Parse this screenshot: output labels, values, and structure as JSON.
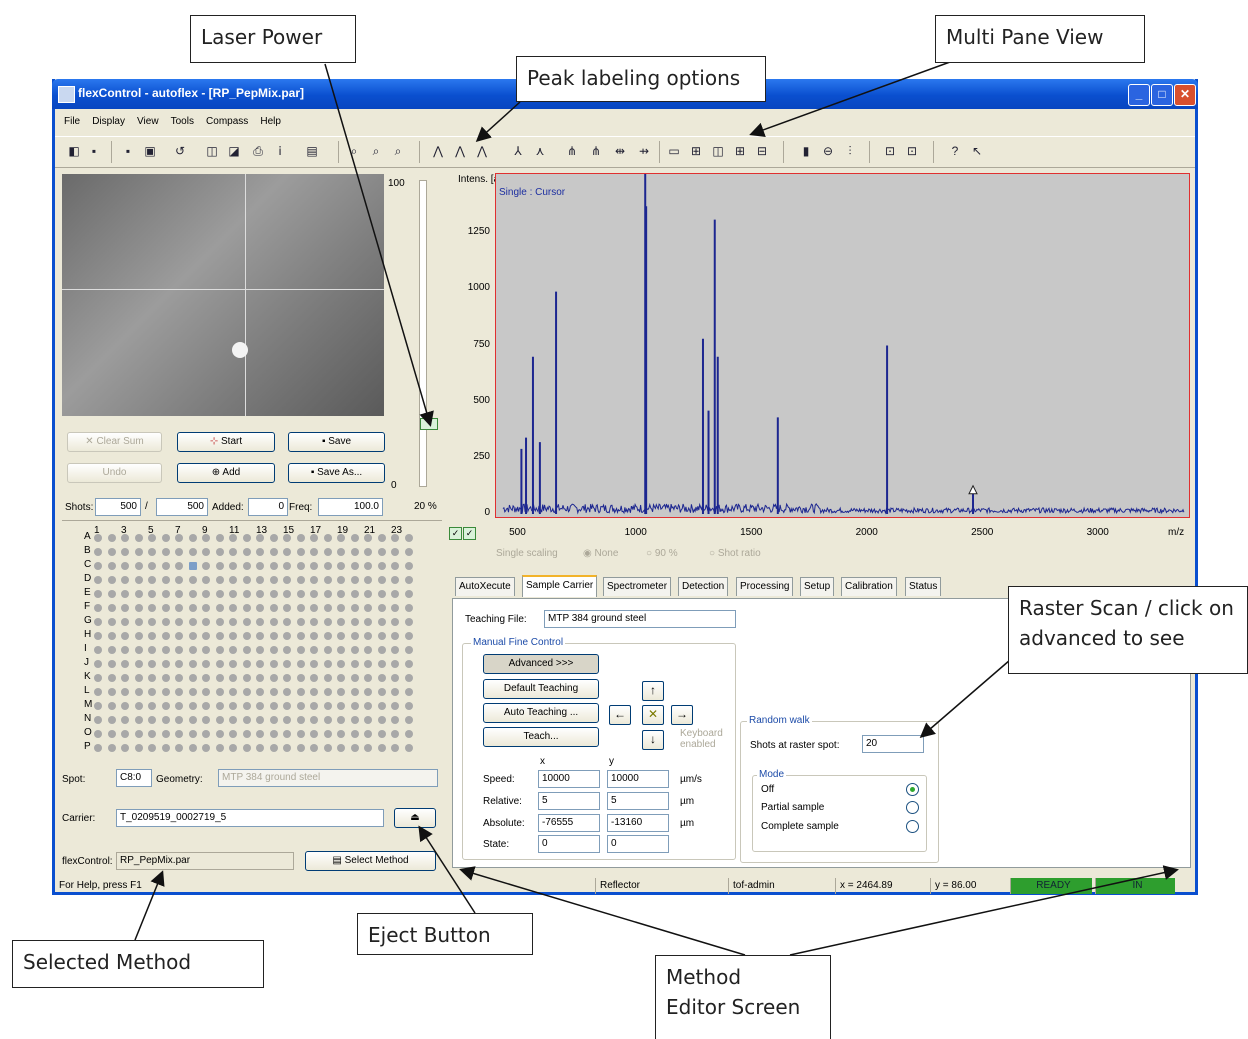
{
  "callouts": {
    "laser_power": "Laser Power",
    "peak_labeling": "Peak labeling options",
    "multi_pane": "Multi Pane View",
    "raster_scan_1": "Raster Scan / click on",
    "raster_scan_2": "advanced to see",
    "eject_button": "Eject Button",
    "selected_method": "Selected Method",
    "method_editor_1": "Method",
    "method_editor_2": "Editor Screen"
  },
  "window": {
    "title": "flexControl - autoflex - [RP_PepMix.par]"
  },
  "menu": [
    "File",
    "Display",
    "View",
    "Tools",
    "Compass",
    "Help"
  ],
  "camera": {
    "buttons": {
      "clear_sum": "Clear Sum",
      "start": "Start",
      "save": "Save",
      "undo": "Undo",
      "add": "Add",
      "save_as": "Save As..."
    },
    "slider_max": "100",
    "slider_min": "0",
    "laser_percent": "20 %",
    "shots_label": "Shots:",
    "shots_value": "500",
    "shots_sep": "/",
    "shots_total": "500",
    "added_label": "Added:",
    "added_value": "0",
    "freq_label": "Freq:",
    "freq_value": "100.0"
  },
  "plate": {
    "cols": [
      "1",
      "3",
      "5",
      "7",
      "9",
      "11",
      "13",
      "15",
      "17",
      "19",
      "21",
      "23"
    ],
    "rows": [
      "A",
      "B",
      "C",
      "D",
      "E",
      "F",
      "G",
      "H",
      "I",
      "J",
      "K",
      "L",
      "M",
      "N",
      "O",
      "P"
    ]
  },
  "spot": {
    "spot_label": "Spot:",
    "spot_value": "C8:0",
    "geometry_label": "Geometry:",
    "geometry_value": "MTP 384 ground steel",
    "carrier_label": "Carrier:",
    "carrier_value": "T_0209519_0002719_5",
    "method_label": "flexControl:",
    "method_value": "RP_PepMix.par",
    "select_method": "Select Method"
  },
  "chart_data": {
    "type": "line",
    "title": "",
    "ylabel": "Intens. [a.u.]",
    "xlabel": "m/z",
    "legend_text": "Single   : Cursor",
    "ylim": [
      0,
      1500
    ],
    "xlim": [
      400,
      3400
    ],
    "yticks": [
      0,
      250,
      500,
      750,
      1000,
      1250
    ],
    "xticks": [
      500,
      1000,
      1500,
      2000,
      2500,
      3000
    ],
    "peaks": [
      {
        "x": 510,
        "y": 290
      },
      {
        "x": 530,
        "y": 340
      },
      {
        "x": 560,
        "y": 700
      },
      {
        "x": 590,
        "y": 320
      },
      {
        "x": 660,
        "y": 990
      },
      {
        "x": 1046,
        "y": 1590
      },
      {
        "x": 1050,
        "y": 1370
      },
      {
        "x": 1296,
        "y": 780
      },
      {
        "x": 1320,
        "y": 460
      },
      {
        "x": 1347,
        "y": 1310
      },
      {
        "x": 1360,
        "y": 700
      },
      {
        "x": 1620,
        "y": 430
      },
      {
        "x": 2093,
        "y": 750
      },
      {
        "x": 2465,
        "y": 90
      }
    ],
    "scaling_options": [
      "Single scaling",
      "None",
      "90 %",
      "Shot ratio"
    ]
  },
  "tabs": [
    "AutoXecute",
    "Sample Carrier",
    "Spectrometer",
    "Detection",
    "Processing",
    "Setup",
    "Calibration",
    "Status"
  ],
  "active_tab": "Sample Carrier",
  "carrier_tab": {
    "teaching_file_label": "Teaching File:",
    "teaching_file_value": "MTP 384 ground steel",
    "manual_fine_control": "Manual Fine Control",
    "advanced": "Advanced >>>",
    "default_teaching": "Default Teaching",
    "auto_teaching": "Auto Teaching ...",
    "teach": "Teach...",
    "keyboard_enabled": "Keyboard enabled",
    "x_header": "x",
    "y_header": "y",
    "speed_label": "Speed:",
    "speed_x": "10000",
    "speed_y": "10000",
    "speed_unit": "µm/s",
    "relative_label": "Relative:",
    "relative_x": "5",
    "relative_y": "5",
    "relative_unit": "µm",
    "absolute_label": "Absolute:",
    "absolute_x": "-76555",
    "absolute_y": "-13160",
    "absolute_unit": "µm",
    "state_label": "State:",
    "state_x": "0",
    "state_y": "0",
    "random_walk": "Random walk",
    "shots_raster_label": "Shots at raster spot:",
    "shots_raster_value": "20",
    "mode_label": "Mode",
    "mode_off": "Off",
    "mode_partial": "Partial sample",
    "mode_complete": "Complete sample"
  },
  "statusbar": {
    "help": "For Help, press F1",
    "mode": "Reflector",
    "user": "tof-admin",
    "x": "x = 2464.89",
    "y": "y = 86.00",
    "ready": "READY",
    "in": "IN"
  }
}
